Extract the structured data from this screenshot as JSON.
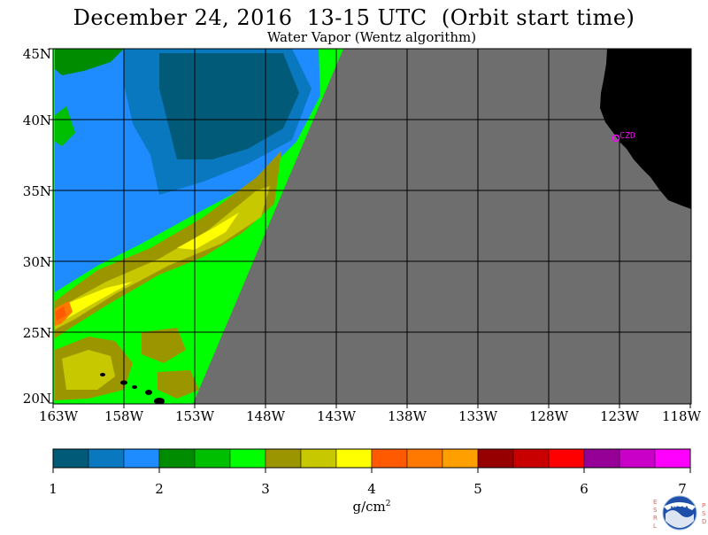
{
  "title": "December 24, 2016  13-15 UTC  (Orbit start time)",
  "subtitle": "Water Vapor (Wentz algorithm)",
  "map": {
    "lat_labels": [
      "45N",
      "40N",
      "35N",
      "30N",
      "25N",
      "20N"
    ],
    "lon_labels": [
      "163W",
      "158W",
      "153W",
      "148W",
      "143W",
      "138W",
      "133W",
      "128W",
      "123W",
      "118W"
    ],
    "station_label": "CZD",
    "colors": {
      "no_data": "#6e6e6e",
      "land": "#000000",
      "grid": "#000000",
      "station": "#ff00ff"
    }
  },
  "colorbar": {
    "ticks": [
      "1",
      "2",
      "3",
      "4",
      "5",
      "6",
      "7"
    ],
    "units_base": "g/cm",
    "units_exp": "2",
    "colors": [
      "#005a78",
      "#0a78be",
      "#1e8cff",
      "#008c00",
      "#00be00",
      "#00ff00",
      "#9b9600",
      "#c8c800",
      "#ffff00",
      "#ff5a00",
      "#ff7800",
      "#ffa000",
      "#960000",
      "#c80000",
      "#ff0000",
      "#960096",
      "#c800c8",
      "#ff00ff"
    ]
  },
  "logo": {
    "left_letters": "ESRL",
    "right_letters": "PSD",
    "center_text": "NOAA"
  }
}
